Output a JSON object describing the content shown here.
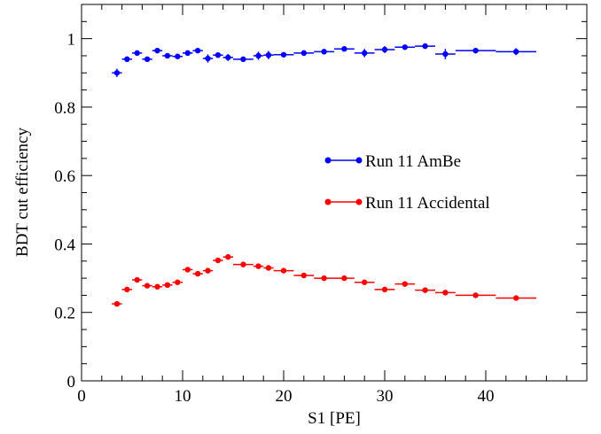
{
  "chart_data": {
    "type": "scatter",
    "xlabel": "S1 [PE]",
    "ylabel": "BDT cut efficiency",
    "xlim": [
      0,
      50
    ],
    "ylim": [
      0,
      1.1
    ],
    "xticks": [
      0,
      10,
      20,
      30,
      40
    ],
    "yticks": [
      0,
      0.2,
      0.4,
      0.6,
      0.8,
      1
    ],
    "ytick_labels": [
      "0",
      "0.2",
      "0.4",
      "0.6",
      "0.8",
      "1"
    ],
    "grid": false,
    "legend_position": "center-right",
    "series": [
      {
        "name": "Run 11 AmBe",
        "color": "#0000ff",
        "points": [
          {
            "x": 3.5,
            "xerr": 0.5,
            "y": 0.9,
            "yerr": 0.012
          },
          {
            "x": 4.5,
            "xerr": 0.5,
            "y": 0.94,
            "yerr": 0.008
          },
          {
            "x": 5.5,
            "xerr": 0.5,
            "y": 0.958,
            "yerr": 0.007
          },
          {
            "x": 6.5,
            "xerr": 0.5,
            "y": 0.94,
            "yerr": 0.007
          },
          {
            "x": 7.5,
            "xerr": 0.5,
            "y": 0.965,
            "yerr": 0.006
          },
          {
            "x": 8.5,
            "xerr": 0.5,
            "y": 0.95,
            "yerr": 0.006
          },
          {
            "x": 9.5,
            "xerr": 0.5,
            "y": 0.948,
            "yerr": 0.006
          },
          {
            "x": 10.5,
            "xerr": 0.5,
            "y": 0.958,
            "yerr": 0.006
          },
          {
            "x": 11.5,
            "xerr": 0.5,
            "y": 0.965,
            "yerr": 0.006
          },
          {
            "x": 12.5,
            "xerr": 0.5,
            "y": 0.942,
            "yerr": 0.012
          },
          {
            "x": 13.5,
            "xerr": 0.5,
            "y": 0.952,
            "yerr": 0.008
          },
          {
            "x": 14.5,
            "xerr": 0.5,
            "y": 0.945,
            "yerr": 0.01
          },
          {
            "x": 16.0,
            "xerr": 1.0,
            "y": 0.94,
            "yerr": 0.006
          },
          {
            "x": 17.5,
            "xerr": 0.5,
            "y": 0.95,
            "yerr": 0.012
          },
          {
            "x": 18.5,
            "xerr": 0.5,
            "y": 0.952,
            "yerr": 0.012
          },
          {
            "x": 20.0,
            "xerr": 1.0,
            "y": 0.953,
            "yerr": 0.006
          },
          {
            "x": 22.0,
            "xerr": 1.0,
            "y": 0.958,
            "yerr": 0.008
          },
          {
            "x": 24.0,
            "xerr": 1.0,
            "y": 0.962,
            "yerr": 0.006
          },
          {
            "x": 26.0,
            "xerr": 1.0,
            "y": 0.97,
            "yerr": 0.006
          },
          {
            "x": 28.0,
            "xerr": 1.0,
            "y": 0.958,
            "yerr": 0.012
          },
          {
            "x": 30.0,
            "xerr": 1.0,
            "y": 0.968,
            "yerr": 0.01
          },
          {
            "x": 32.0,
            "xerr": 1.0,
            "y": 0.975,
            "yerr": 0.006
          },
          {
            "x": 34.0,
            "xerr": 1.0,
            "y": 0.978,
            "yerr": 0.006
          },
          {
            "x": 36.0,
            "xerr": 1.0,
            "y": 0.955,
            "yerr": 0.015
          },
          {
            "x": 39.0,
            "xerr": 2.0,
            "y": 0.965,
            "yerr": 0.006
          },
          {
            "x": 43.0,
            "xerr": 2.0,
            "y": 0.962,
            "yerr": 0.01
          }
        ]
      },
      {
        "name": "Run 11 Accidental",
        "color": "#ff0000",
        "points": [
          {
            "x": 3.5,
            "xerr": 0.5,
            "y": 0.225,
            "yerr": 0.005
          },
          {
            "x": 4.5,
            "xerr": 0.5,
            "y": 0.267,
            "yerr": 0.005
          },
          {
            "x": 5.5,
            "xerr": 0.5,
            "y": 0.295,
            "yerr": 0.005
          },
          {
            "x": 6.5,
            "xerr": 0.5,
            "y": 0.278,
            "yerr": 0.005
          },
          {
            "x": 7.5,
            "xerr": 0.5,
            "y": 0.275,
            "yerr": 0.005
          },
          {
            "x": 8.5,
            "xerr": 0.5,
            "y": 0.28,
            "yerr": 0.005
          },
          {
            "x": 9.5,
            "xerr": 0.5,
            "y": 0.288,
            "yerr": 0.005
          },
          {
            "x": 10.5,
            "xerr": 0.5,
            "y": 0.325,
            "yerr": 0.005
          },
          {
            "x": 11.5,
            "xerr": 0.5,
            "y": 0.313,
            "yerr": 0.005
          },
          {
            "x": 12.5,
            "xerr": 0.5,
            "y": 0.322,
            "yerr": 0.005
          },
          {
            "x": 13.5,
            "xerr": 0.5,
            "y": 0.352,
            "yerr": 0.005
          },
          {
            "x": 14.5,
            "xerr": 0.5,
            "y": 0.362,
            "yerr": 0.005
          },
          {
            "x": 16.0,
            "xerr": 1.0,
            "y": 0.34,
            "yerr": 0.005
          },
          {
            "x": 17.5,
            "xerr": 0.5,
            "y": 0.335,
            "yerr": 0.005
          },
          {
            "x": 18.5,
            "xerr": 0.5,
            "y": 0.33,
            "yerr": 0.005
          },
          {
            "x": 20.0,
            "xerr": 1.0,
            "y": 0.322,
            "yerr": 0.005
          },
          {
            "x": 22.0,
            "xerr": 1.0,
            "y": 0.308,
            "yerr": 0.005
          },
          {
            "x": 24.0,
            "xerr": 1.0,
            "y": 0.3,
            "yerr": 0.005
          },
          {
            "x": 26.0,
            "xerr": 1.0,
            "y": 0.3,
            "yerr": 0.005
          },
          {
            "x": 28.0,
            "xerr": 1.0,
            "y": 0.288,
            "yerr": 0.005
          },
          {
            "x": 30.0,
            "xerr": 1.0,
            "y": 0.267,
            "yerr": 0.005
          },
          {
            "x": 32.0,
            "xerr": 1.0,
            "y": 0.283,
            "yerr": 0.005
          },
          {
            "x": 34.0,
            "xerr": 1.0,
            "y": 0.265,
            "yerr": 0.005
          },
          {
            "x": 36.0,
            "xerr": 1.0,
            "y": 0.258,
            "yerr": 0.005
          },
          {
            "x": 39.0,
            "xerr": 2.0,
            "y": 0.25,
            "yerr": 0.005
          },
          {
            "x": 43.0,
            "xerr": 2.0,
            "y": 0.242,
            "yerr": 0.005
          }
        ]
      }
    ]
  }
}
